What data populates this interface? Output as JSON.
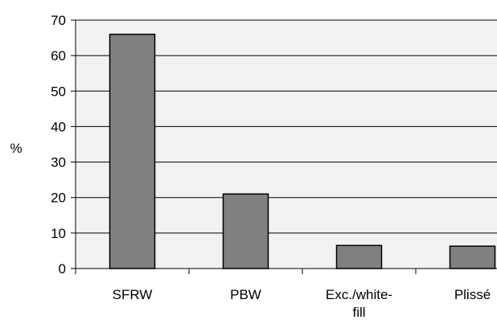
{
  "chart_data": {
    "type": "bar",
    "title": "",
    "xlabel": "",
    "ylabel": "%",
    "ylim": [
      0,
      70
    ],
    "yticks": [
      0,
      10,
      20,
      30,
      40,
      50,
      60,
      70
    ],
    "grid": true,
    "categories": [
      [
        "SFRW"
      ],
      [
        "PBW"
      ],
      [
        "Exc./white-",
        "fill"
      ],
      [
        "Plissé"
      ]
    ],
    "values": [
      66,
      21,
      6.5,
      6.3
    ],
    "colors": {
      "bar_fill": "#808080",
      "bar_stroke": "#000000",
      "plot_background": "#f2f2f2",
      "gridline": "#000000",
      "axis": "#000000"
    }
  }
}
